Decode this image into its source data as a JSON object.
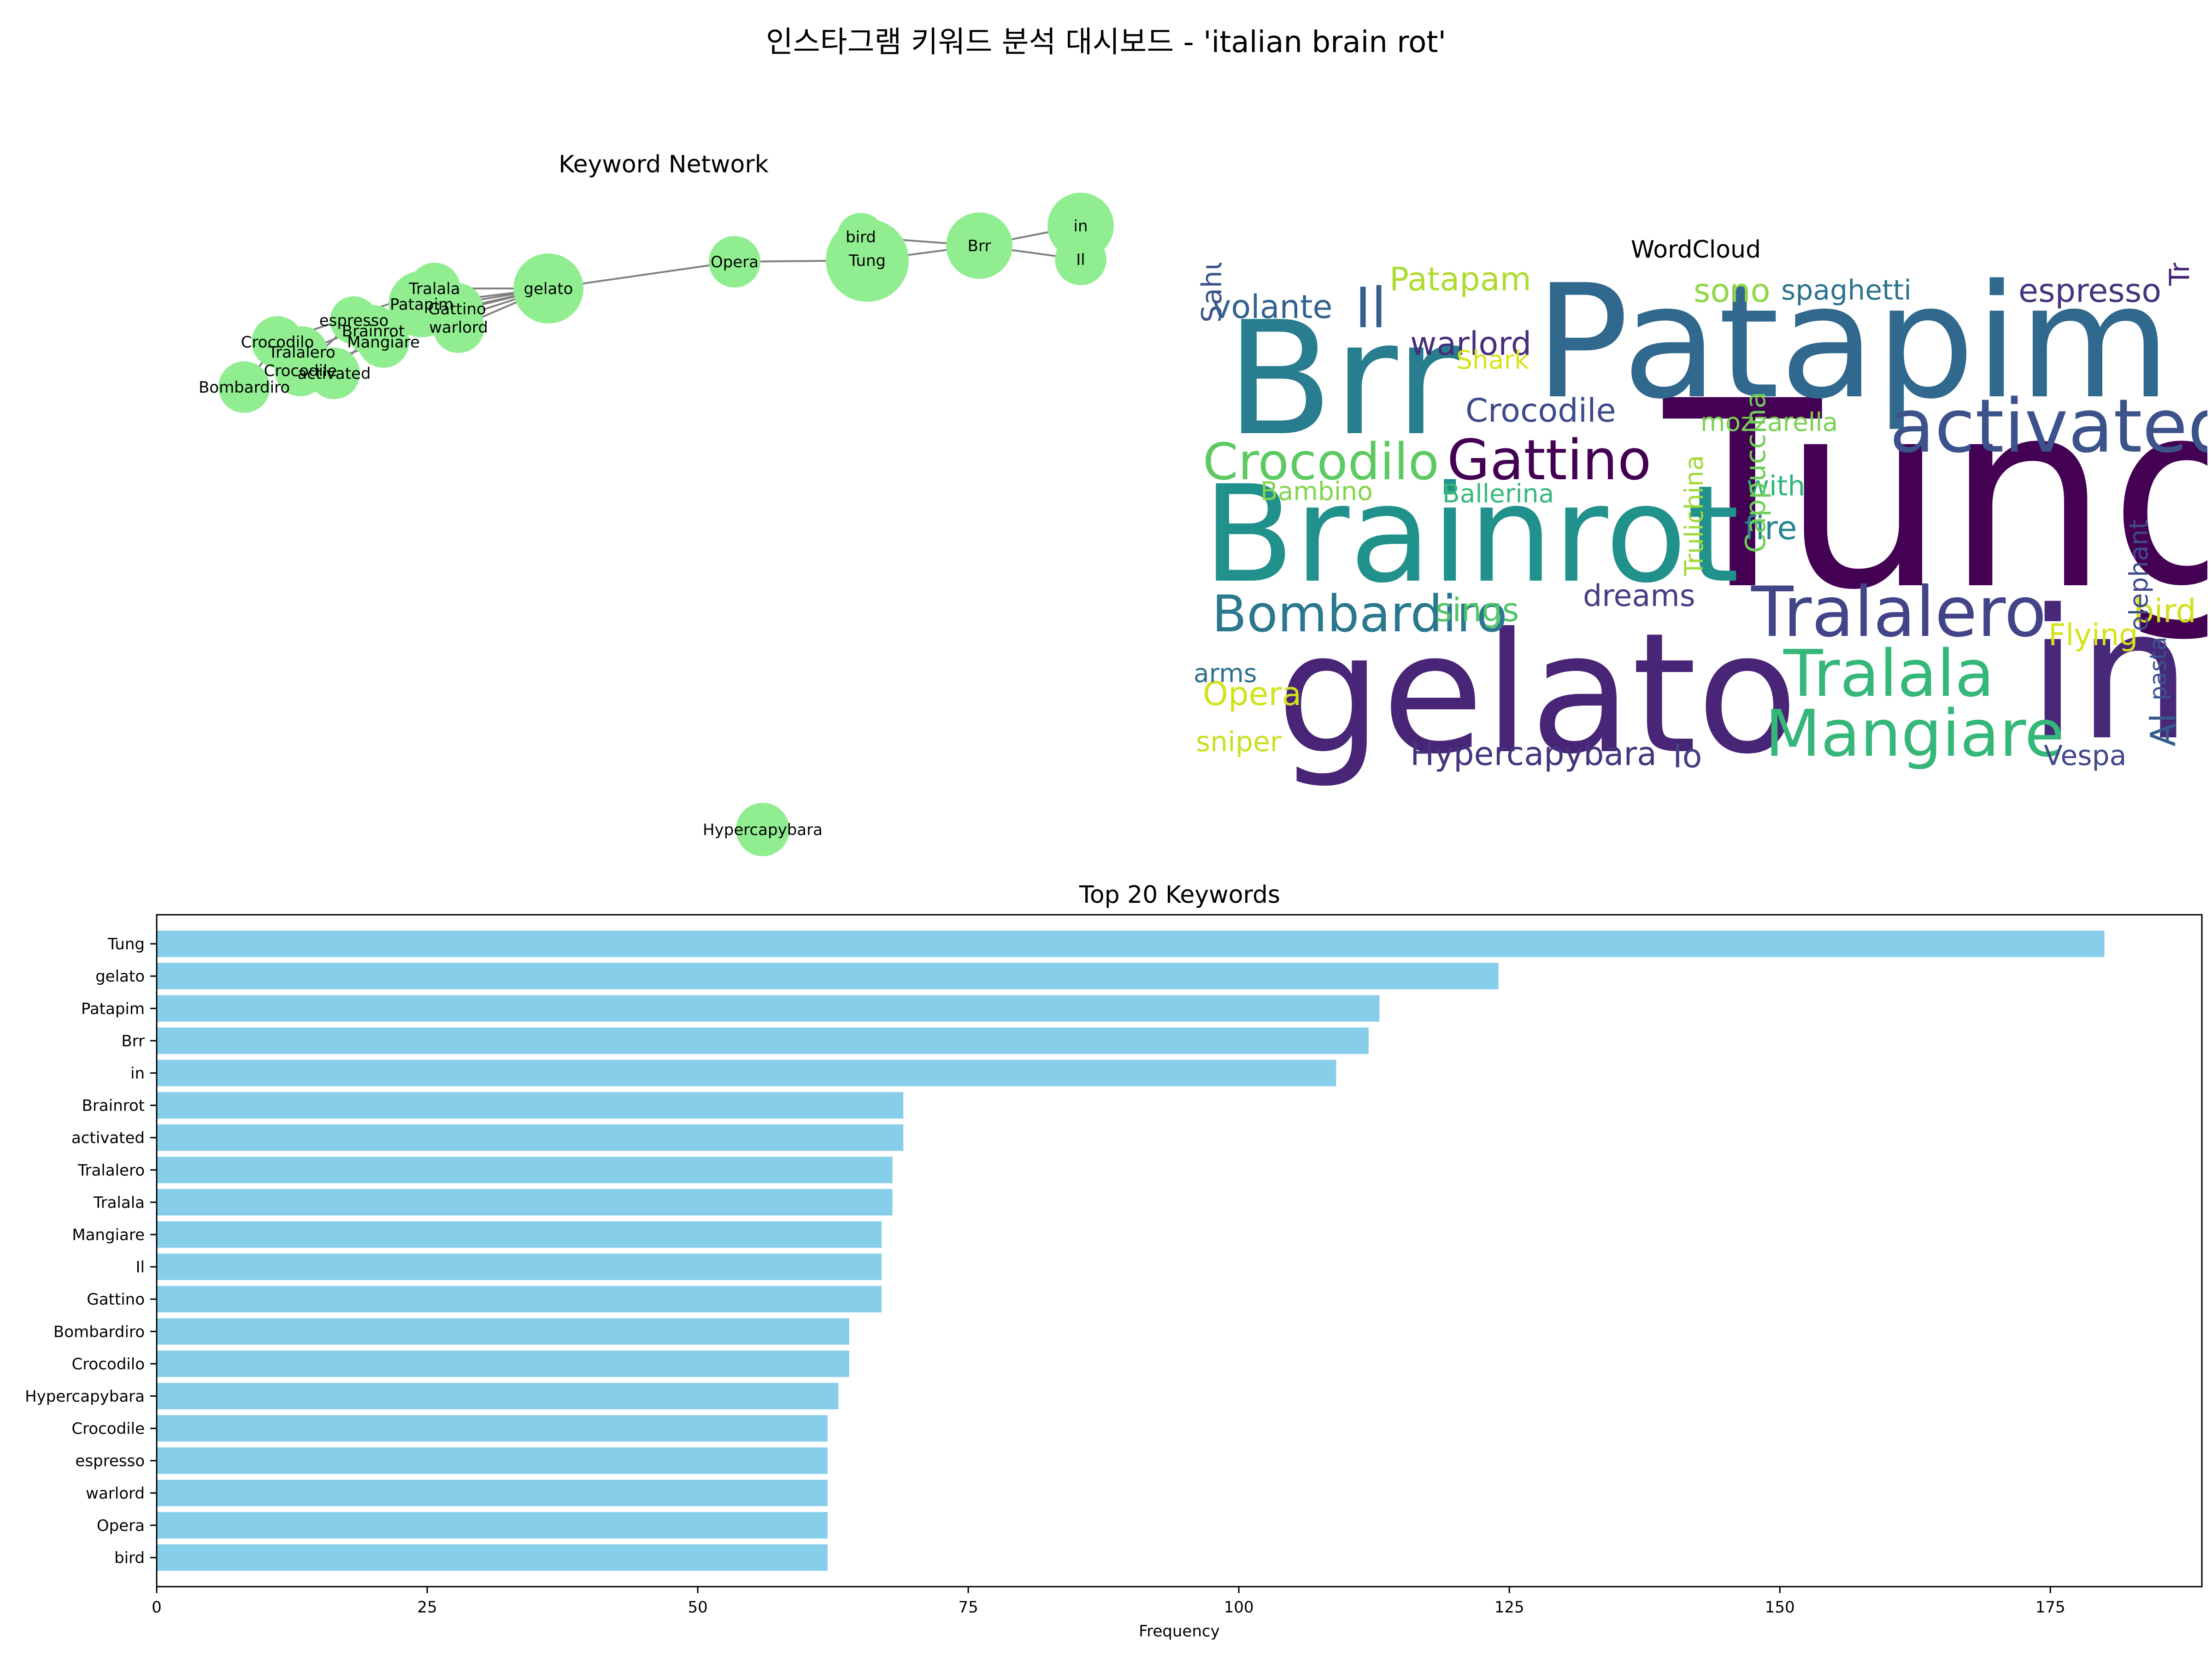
{
  "title": "인스타그램 키워드 분석 대시보드 - 'italian brain rot'",
  "network": {
    "title": "Keyword Network",
    "node_color": "#90ee90",
    "edge_color": "#808080",
    "nodes": [
      {
        "id": "in"
      },
      {
        "id": "Il"
      },
      {
        "id": "Brr"
      },
      {
        "id": "bird"
      },
      {
        "id": "Tung"
      },
      {
        "id": "Opera"
      },
      {
        "id": "gelato"
      },
      {
        "id": "Tralala"
      },
      {
        "id": "Patapim"
      },
      {
        "id": "Gattino"
      },
      {
        "id": "warlord"
      },
      {
        "id": "espresso"
      },
      {
        "id": "Brainrot"
      },
      {
        "id": "Mangiare"
      },
      {
        "id": "Crocodilo"
      },
      {
        "id": "Tralalero"
      },
      {
        "id": "Crocodile"
      },
      {
        "id": "activated"
      },
      {
        "id": "Bombardiro"
      },
      {
        "id": "Hypercapybara"
      }
    ],
    "edges": [
      [
        "in",
        "Brr"
      ],
      [
        "Il",
        "Brr"
      ],
      [
        "Brr",
        "Tung"
      ],
      [
        "bird",
        "Brr"
      ],
      [
        "bird",
        "Tung"
      ],
      [
        "Tung",
        "Opera"
      ],
      [
        "Opera",
        "gelato"
      ],
      [
        "gelato",
        "Tralala"
      ],
      [
        "gelato",
        "Patapim"
      ],
      [
        "gelato",
        "Gattino"
      ],
      [
        "gelato",
        "warlord"
      ],
      [
        "gelato",
        "espresso"
      ],
      [
        "gelato",
        "Brainrot"
      ],
      [
        "gelato",
        "Mangiare"
      ],
      [
        "Tralala",
        "Crocodilo"
      ],
      [
        "Patapim",
        "Tralalero"
      ],
      [
        "espresso",
        "Crocodile"
      ],
      [
        "Brainrot",
        "activated"
      ],
      [
        "Crocodilo",
        "Bombardiro"
      ],
      [
        "Tralalero",
        "Crocodile"
      ],
      [
        "Crocodilo",
        "Tralalero"
      ],
      [
        "Mangiare",
        "Crocodile"
      ]
    ]
  },
  "wordcloud": {
    "title": "WordCloud",
    "words": [
      {
        "text": "Tung",
        "color": "#440154"
      },
      {
        "text": "Patapim",
        "color": "#31688e"
      },
      {
        "text": "Brr",
        "color": "#287d8e"
      },
      {
        "text": "gelato",
        "color": "#482576"
      },
      {
        "text": "in",
        "color": "#482878"
      },
      {
        "text": "Brainrot",
        "color": "#21918c"
      },
      {
        "text": "activated",
        "color": "#3b528b"
      },
      {
        "text": "Tralalero",
        "color": "#414487"
      },
      {
        "text": "Tralala",
        "color": "#35b779"
      },
      {
        "text": "Mangiare",
        "color": "#35b779"
      },
      {
        "text": "Gattino",
        "color": "#440154"
      },
      {
        "text": "Crocodilo",
        "color": "#5ec962"
      },
      {
        "text": "Bombardiro",
        "color": "#2a788e"
      },
      {
        "text": "Hypercapybara",
        "color": "#46337e"
      },
      {
        "text": "Crocodile",
        "color": "#3e4a89"
      },
      {
        "text": "espresso",
        "color": "#46337e"
      },
      {
        "text": "warlord",
        "color": "#472d7b"
      },
      {
        "text": "Opera",
        "color": "#d2e21b"
      },
      {
        "text": "bird",
        "color": "#d0e11c"
      },
      {
        "text": "Il",
        "color": "#355f8d"
      },
      {
        "text": "volante",
        "color": "#33638d"
      },
      {
        "text": "Patapam",
        "color": "#addc30"
      },
      {
        "text": "sono",
        "color": "#8fd744"
      },
      {
        "text": "spaghetti",
        "color": "#2c728e"
      },
      {
        "text": "Trulimero",
        "color": "#482475"
      },
      {
        "text": "Sahur",
        "color": "#3b528b"
      },
      {
        "text": "Shark",
        "color": "#d8e219"
      },
      {
        "text": "mozzarella",
        "color": "#7ad151"
      },
      {
        "text": "Bambino",
        "color": "#84d44b"
      },
      {
        "text": "Ballerina",
        "color": "#37b878"
      },
      {
        "text": "with",
        "color": "#2fb47c"
      },
      {
        "text": "fire",
        "color": "#25858e"
      },
      {
        "text": "Cappuccina",
        "color": "#6ece58"
      },
      {
        "text": "Trulichina",
        "color": "#a0da39"
      },
      {
        "text": "elephant",
        "color": "#3e4c8a"
      },
      {
        "text": "sings",
        "color": "#52c569"
      },
      {
        "text": "dreams",
        "color": "#433e85"
      },
      {
        "text": "Flying",
        "color": "#d8e219"
      },
      {
        "text": "arms",
        "color": "#2e6f8e"
      },
      {
        "text": "sniper",
        "color": "#c8e020"
      },
      {
        "text": "Io",
        "color": "#424086"
      },
      {
        "text": "Vespa",
        "color": "#3f4889"
      },
      {
        "text": "pasta",
        "color": "#3a548c"
      },
      {
        "text": "Al",
        "color": "#365c8d"
      }
    ]
  },
  "bar_panel": {
    "title": "Top 20 Keywords",
    "bar_color": "#87ceeb"
  },
  "chart_data": {
    "type": "bar",
    "orientation": "horizontal",
    "title": "Top 20 Keywords",
    "xlabel": "Frequency",
    "ylabel": "",
    "xlim": [
      0,
      189
    ],
    "xticks": [
      0,
      25,
      50,
      75,
      100,
      125,
      150,
      175
    ],
    "grid": false,
    "categories": [
      "Tung",
      "gelato",
      "Patapim",
      "Brr",
      "in",
      "Brainrot",
      "activated",
      "Tralalero",
      "Tralala",
      "Mangiare",
      "Il",
      "Gattino",
      "Bombardiro",
      "Crocodilo",
      "Hypercapybara",
      "Crocodile",
      "espresso",
      "warlord",
      "Opera",
      "bird"
    ],
    "values": [
      180,
      124,
      113,
      112,
      109,
      69,
      69,
      68,
      68,
      67,
      67,
      67,
      64,
      64,
      63,
      62,
      62,
      62,
      62,
      62
    ]
  }
}
